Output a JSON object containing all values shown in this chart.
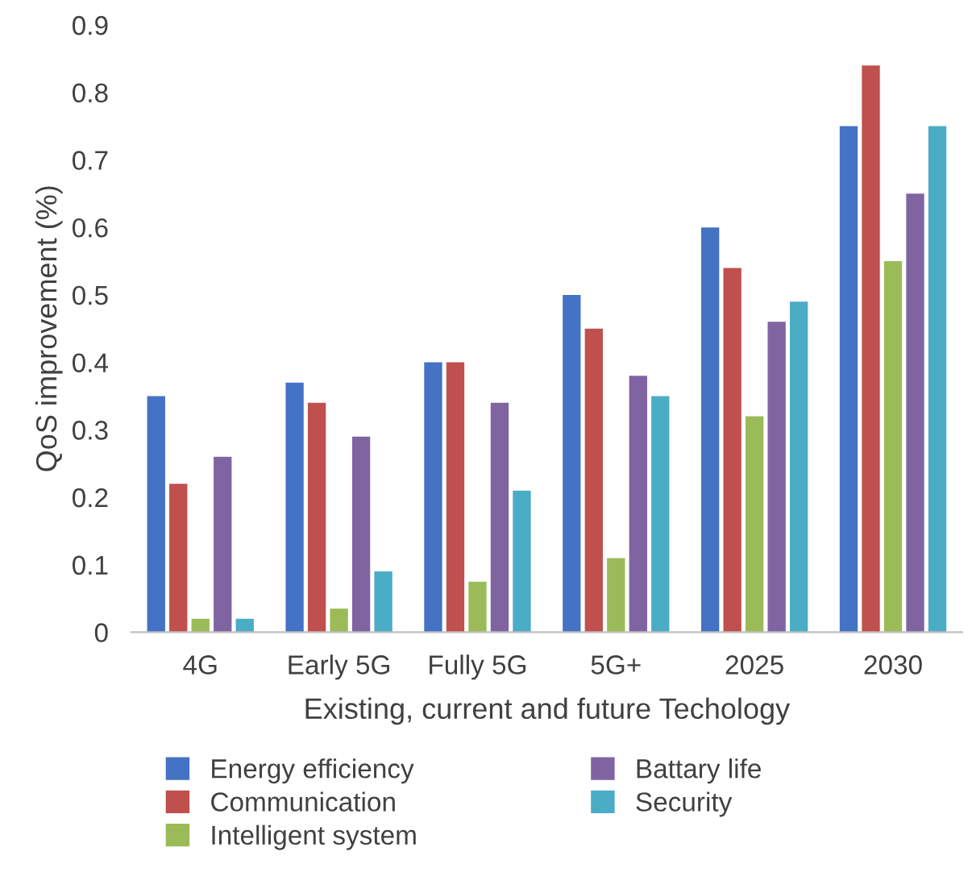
{
  "chart_data": {
    "type": "bar",
    "xlabel": "Existing, current and future Techology",
    "ylabel": "QoS improvement (%)",
    "categories": [
      "4G",
      "Early 5G",
      "Fully 5G",
      "5G+",
      "2025",
      "2030"
    ],
    "series": [
      {
        "name": "Energy efficiency",
        "color": "#4472c4",
        "values": [
          0.35,
          0.37,
          0.4,
          0.5,
          0.6,
          0.75
        ]
      },
      {
        "name": "Communication",
        "color": "#c0504d",
        "values": [
          0.22,
          0.34,
          0.4,
          0.45,
          0.54,
          0.84
        ]
      },
      {
        "name": "Intelligent system",
        "color": "#9bbb59",
        "values": [
          0.02,
          0.035,
          0.075,
          0.11,
          0.32,
          0.55
        ]
      },
      {
        "name": "Battary life",
        "color": "#8064a2",
        "values": [
          0.26,
          0.29,
          0.34,
          0.38,
          0.46,
          0.65
        ]
      },
      {
        "name": "Security",
        "color": "#4bacc6",
        "values": [
          0.02,
          0.09,
          0.21,
          0.35,
          0.49,
          0.75
        ]
      }
    ],
    "ylim": [
      0,
      0.9
    ],
    "yticks": [
      {
        "value": 0,
        "label": "0"
      },
      0.1,
      0.2,
      0.3,
      0.4,
      0.5,
      0.6,
      0.7,
      0.8,
      0.9
    ],
    "grid": false,
    "legend": "bottom"
  }
}
